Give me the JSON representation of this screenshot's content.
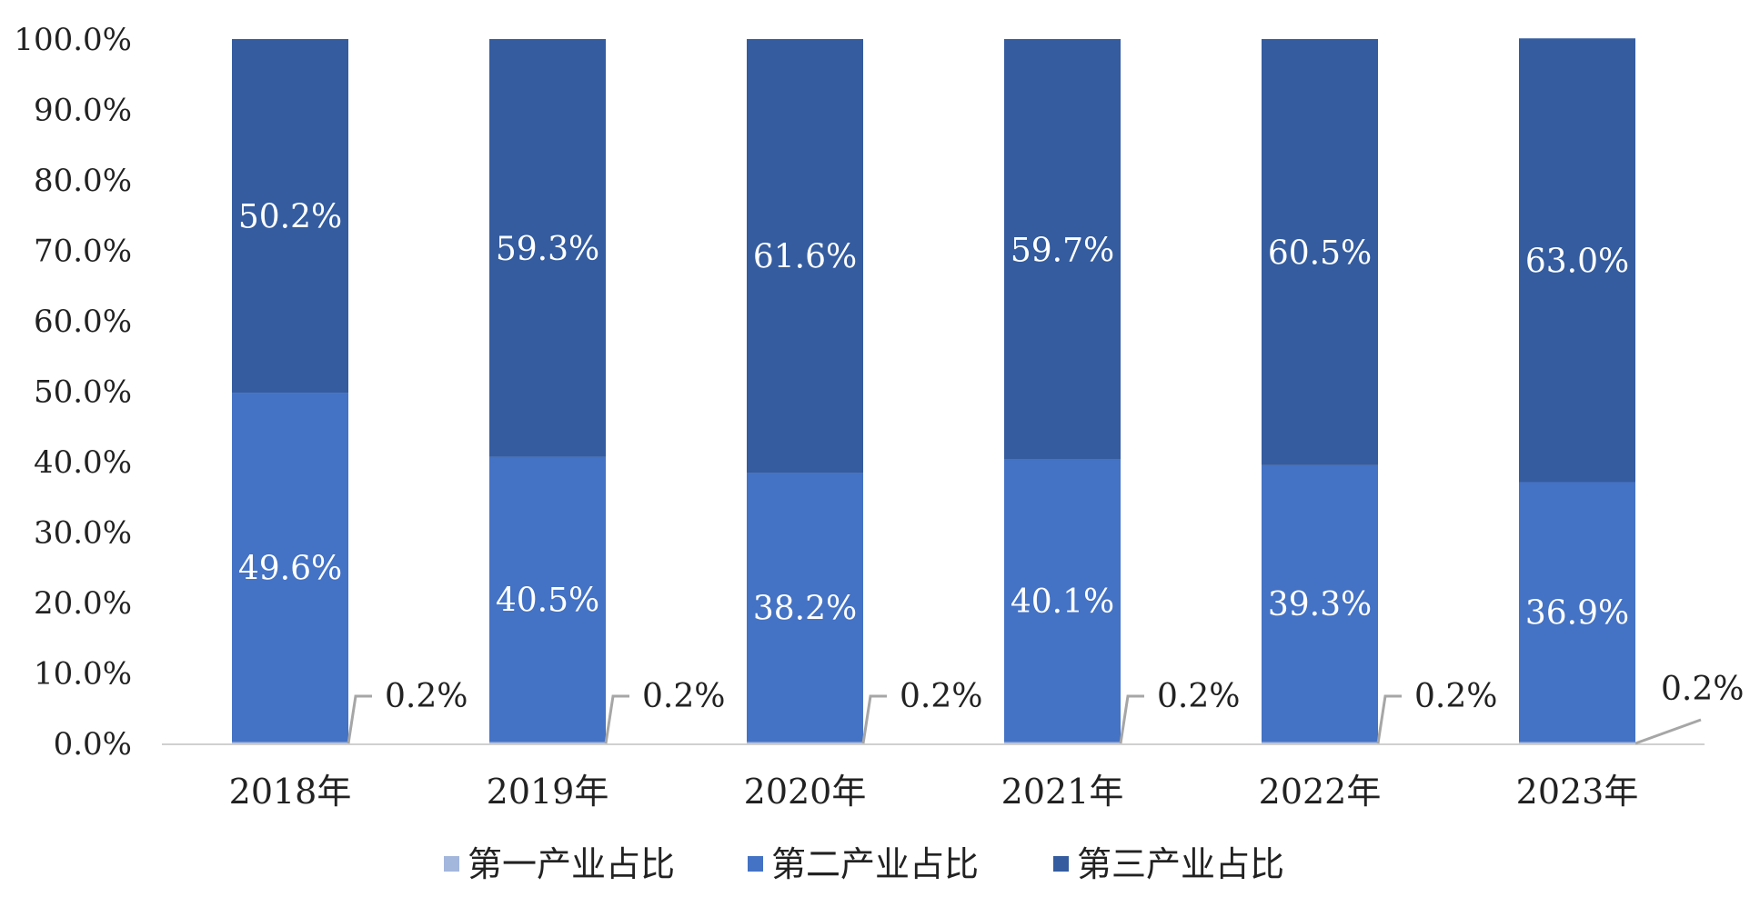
{
  "chart_data": {
    "type": "bar",
    "stacked": true,
    "categories": [
      "2018年",
      "2019年",
      "2020年",
      "2021年",
      "2022年",
      "2023年"
    ],
    "series": [
      {
        "name": "第一产业占比",
        "color": "#a3b6dc",
        "values": [
          0.2,
          0.2,
          0.2,
          0.2,
          0.2,
          0.2
        ],
        "labels": [
          "0.2%",
          "0.2%",
          "0.2%",
          "0.2%",
          "0.2%",
          "0.2%"
        ]
      },
      {
        "name": "第二产业占比",
        "color": "#4472c4",
        "values": [
          49.6,
          40.5,
          38.2,
          40.1,
          39.3,
          36.9
        ],
        "labels": [
          "49.6%",
          "40.5%",
          "38.2%",
          "40.1%",
          "39.3%",
          "36.9%"
        ]
      },
      {
        "name": "第三产业占比",
        "color": "#345c9f",
        "values": [
          50.2,
          59.3,
          61.6,
          59.7,
          60.5,
          63.0
        ],
        "labels": [
          "50.2%",
          "59.3%",
          "61.6%",
          "59.7%",
          "60.5%",
          "63.0%"
        ]
      }
    ],
    "yticks": [
      "0.0%",
      "10.0%",
      "20.0%",
      "30.0%",
      "40.0%",
      "50.0%",
      "60.0%",
      "70.0%",
      "80.0%",
      "90.0%",
      "100.0%"
    ],
    "ylim": [
      0,
      100
    ],
    "grid": false,
    "legend_position": "bottom",
    "title": "",
    "xlabel": "",
    "ylabel": ""
  }
}
